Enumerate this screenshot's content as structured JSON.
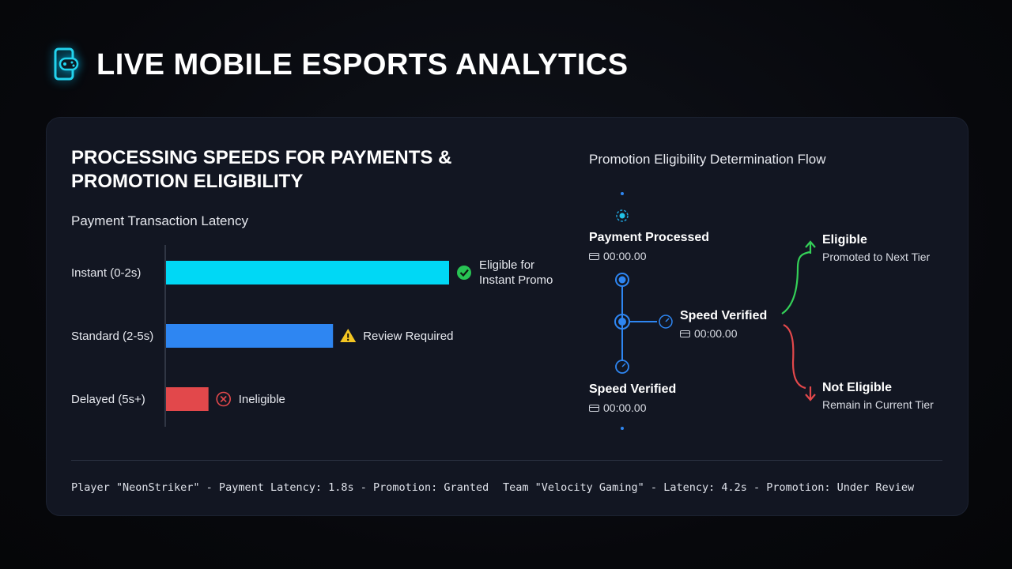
{
  "header": {
    "title": "LIVE MOBILE ESPORTS ANALYTICS",
    "icon": "mobile-gamepad-icon"
  },
  "panel": {
    "title_line1": "PROCESSING SPEEDS FOR PAYMENTS &",
    "title_line2": "PROMOTION ELIGIBILITY"
  },
  "chart_data": {
    "type": "bar",
    "orientation": "horizontal",
    "title": "Payment Transaction Latency",
    "categories": [
      "Instant (0-2s)",
      "Standard (2-5s)",
      "Delayed (5s+)"
    ],
    "values": [
      100,
      59,
      15
    ],
    "xlabel": "",
    "ylabel": "",
    "xlim": [
      0,
      100
    ],
    "grid": false,
    "colors": [
      "#00d8f5",
      "#2e86f2",
      "#e2484b"
    ],
    "annotations": [
      {
        "category": "Instant (0-2s)",
        "icon": "check-circle-icon",
        "color": "#28c354",
        "text": [
          "Eligible for",
          "Instant Promotion"
        ]
      },
      {
        "category": "Standard (2-5s)",
        "icon": "warning-triangle-icon",
        "color": "#f3c522",
        "text": [
          "Review Required"
        ]
      },
      {
        "category": "Delayed (5s+)",
        "icon": "x-circle-icon",
        "color": "#e2484b",
        "text": [
          "Ineligible"
        ]
      }
    ]
  },
  "flow": {
    "title": "Promotion Eligibility Determination Flow",
    "nodes": [
      {
        "title": "Payment Processed",
        "time": "00:00.00"
      },
      {
        "title": "Speed Verified",
        "time": "00:00.00"
      },
      {
        "title": "Speed Verified",
        "time": "00:00.00"
      }
    ],
    "outcomes": {
      "eligible": {
        "title": "Eligible",
        "subtitle": "Promoted to Next Tier",
        "color": "#34d058"
      },
      "not_eligible": {
        "title": "Not Eligible",
        "subtitle": "Remain in Current Tier",
        "color": "#e2484b"
      }
    },
    "accent": "#2e86f2"
  },
  "footer": {
    "entry1": "Player \"NeonStriker\" - Payment Latency: 1.8s - Promotion: Granted",
    "entry2": "Team \"Velocity Gaming\" - Latency: 4.2s - Promotion: Under Review"
  }
}
